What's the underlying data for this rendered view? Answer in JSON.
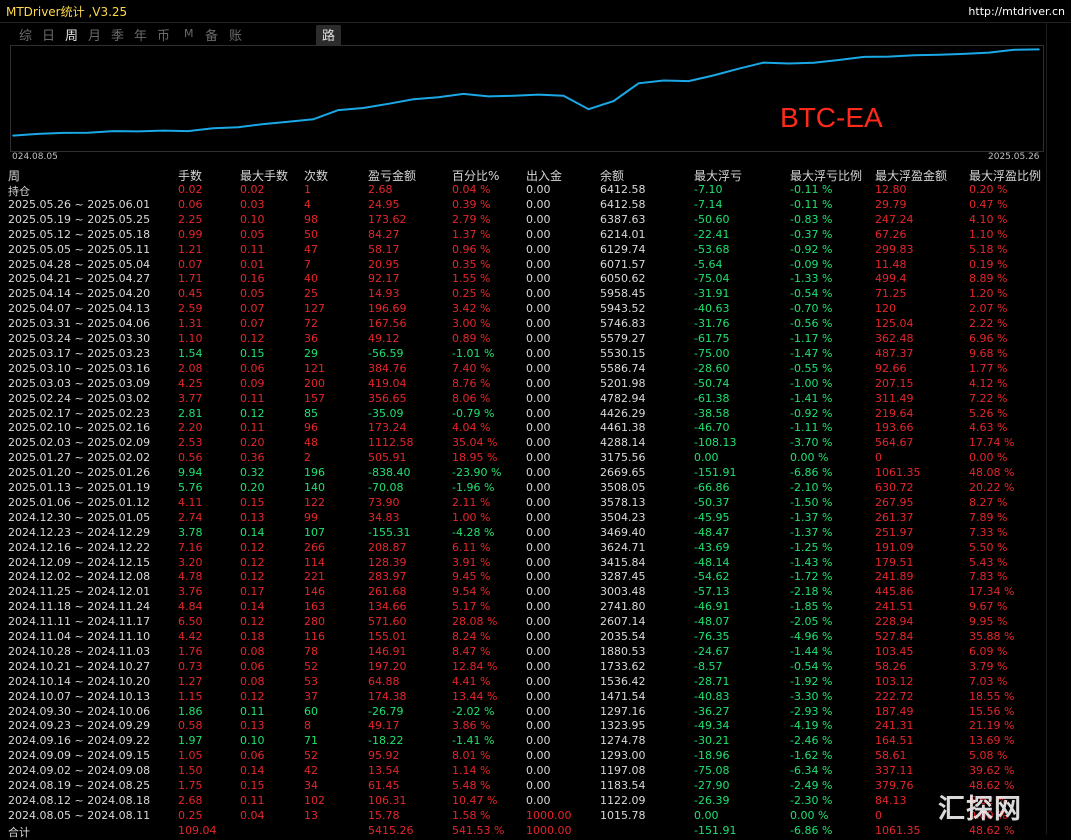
{
  "header": {
    "app_title": "MTDriver统计 ,V3.25",
    "site_url": "http://mtdriver.cn"
  },
  "tabs": [
    {
      "label": "综",
      "active": false
    },
    {
      "label": "日",
      "active": false
    },
    {
      "label": "周",
      "active": true
    },
    {
      "label": "月",
      "active": false
    },
    {
      "label": "季",
      "active": false
    },
    {
      "label": "年",
      "active": false
    },
    {
      "label": "币",
      "active": false
    },
    {
      "label": "M",
      "active": false
    },
    {
      "label": "备",
      "active": false
    },
    {
      "label": "账户",
      "active": false
    },
    {
      "label": "路径",
      "active": false
    }
  ],
  "chart": {
    "start_date": "024.08.05",
    "end_date": "2025.05.26",
    "watermark": "BTC-EA",
    "line_color": "#1aa8e6"
  },
  "chart_data": {
    "type": "line",
    "x": [
      "2024.08.05",
      "2024.08.12",
      "2024.08.19",
      "2024.09.02",
      "2024.09.09",
      "2024.09.16",
      "2024.09.23",
      "2024.09.30",
      "2024.10.07",
      "2024.10.14",
      "2024.10.21",
      "2024.10.28",
      "2024.11.04",
      "2024.11.11",
      "2024.11.18",
      "2024.11.25",
      "2024.12.02",
      "2024.12.09",
      "2024.12.16",
      "2024.12.23",
      "2024.12.30",
      "2025.01.06",
      "2025.01.13",
      "2025.01.20",
      "2025.01.27",
      "2025.02.03",
      "2025.02.10",
      "2025.02.17",
      "2025.02.24",
      "2025.03.03",
      "2025.03.10",
      "2025.03.17",
      "2025.03.24",
      "2025.03.31",
      "2025.04.07",
      "2025.04.14",
      "2025.04.21",
      "2025.04.28",
      "2025.05.05",
      "2025.05.12",
      "2025.05.19",
      "2025.05.26"
    ],
    "values": [
      1015.78,
      1122.09,
      1183.54,
      1197.08,
      1293.0,
      1274.78,
      1323.95,
      1297.16,
      1471.54,
      1536.42,
      1733.62,
      1880.53,
      2035.54,
      2607.14,
      2741.8,
      3003.48,
      3287.45,
      3415.84,
      3624.71,
      3469.4,
      3504.23,
      3578.13,
      3508.05,
      2669.65,
      3175.56,
      4288.14,
      4461.38,
      4426.29,
      4782.94,
      5201.98,
      5586.74,
      5530.15,
      5579.27,
      5746.83,
      5943.52,
      5958.45,
      6050.62,
      6071.57,
      6129.74,
      6214.01,
      6387.63,
      6412.58
    ],
    "xlabel": "",
    "ylabel": "",
    "start_label": "024.08.05",
    "end_label": "2025.05.26"
  },
  "table": {
    "headers": [
      "周",
      "手数",
      "最大手数",
      "次数",
      "盈亏金额",
      "百分比%",
      "出入金",
      "余额",
      "最大浮亏",
      "最大浮亏比例",
      "最大浮盈金额",
      "最大浮盈比例"
    ],
    "rows": [
      {
        "cells": [
          "持仓",
          "0.02",
          "0.02",
          "1",
          "2.68",
          "0.04 %",
          "0.00",
          "6412.58",
          "-7.10",
          "-0.11 %",
          "12.80",
          "0.20 %"
        ],
        "tone": "red"
      },
      {
        "cells": [
          "2025.05.26 ~ 2025.06.01",
          "0.06",
          "0.03",
          "4",
          "24.95",
          "0.39 %",
          "0.00",
          "6412.58",
          "-7.14",
          "-0.11 %",
          "29.79",
          "0.47 %"
        ],
        "tone": "red"
      },
      {
        "cells": [
          "2025.05.19 ~ 2025.05.25",
          "2.25",
          "0.10",
          "98",
          "173.62",
          "2.79 %",
          "0.00",
          "6387.63",
          "-50.60",
          "-0.83 %",
          "247.24",
          "4.10 %"
        ],
        "tone": "red"
      },
      {
        "cells": [
          "2025.05.12 ~ 2025.05.18",
          "0.99",
          "0.05",
          "50",
          "84.27",
          "1.37 %",
          "0.00",
          "6214.01",
          "-22.41",
          "-0.37 %",
          "67.26",
          "1.10 %"
        ],
        "tone": "red"
      },
      {
        "cells": [
          "2025.05.05 ~ 2025.05.11",
          "1.21",
          "0.11",
          "47",
          "58.17",
          "0.96 %",
          "0.00",
          "6129.74",
          "-53.68",
          "-0.92 %",
          "299.83",
          "5.18 %"
        ],
        "tone": "red"
      },
      {
        "cells": [
          "2025.04.28 ~ 2025.05.04",
          "0.07",
          "0.01",
          "7",
          "20.95",
          "0.35 %",
          "0.00",
          "6071.57",
          "-5.64",
          "-0.09 %",
          "11.48",
          "0.19 %"
        ],
        "tone": "red"
      },
      {
        "cells": [
          "2025.04.21 ~ 2025.04.27",
          "1.71",
          "0.16",
          "40",
          "92.17",
          "1.55 %",
          "0.00",
          "6050.62",
          "-75.04",
          "-1.33 %",
          "499.4",
          "8.89 %"
        ],
        "tone": "red"
      },
      {
        "cells": [
          "2025.04.14 ~ 2025.04.20",
          "0.45",
          "0.05",
          "25",
          "14.93",
          "0.25 %",
          "0.00",
          "5958.45",
          "-31.91",
          "-0.54 %",
          "71.25",
          "1.20 %"
        ],
        "tone": "red"
      },
      {
        "cells": [
          "2025.04.07 ~ 2025.04.13",
          "2.59",
          "0.07",
          "127",
          "196.69",
          "3.42 %",
          "0.00",
          "5943.52",
          "-40.63",
          "-0.70 %",
          "120",
          "2.07 %"
        ],
        "tone": "red"
      },
      {
        "cells": [
          "2025.03.31 ~ 2025.04.06",
          "1.31",
          "0.07",
          "72",
          "167.56",
          "3.00 %",
          "0.00",
          "5746.83",
          "-31.76",
          "-0.56 %",
          "125.04",
          "2.22 %"
        ],
        "tone": "red"
      },
      {
        "cells": [
          "2025.03.24 ~ 2025.03.30",
          "1.10",
          "0.12",
          "36",
          "49.12",
          "0.89 %",
          "0.00",
          "5579.27",
          "-61.75",
          "-1.17 %",
          "362.48",
          "6.96 %"
        ],
        "tone": "red"
      },
      {
        "cells": [
          "2025.03.17 ~ 2025.03.23",
          "1.54",
          "0.15",
          "29",
          "-56.59",
          "-1.01 %",
          "0.00",
          "5530.15",
          "-75.00",
          "-1.47 %",
          "487.37",
          "9.68 %"
        ],
        "tone": "green"
      },
      {
        "cells": [
          "2025.03.10 ~ 2025.03.16",
          "2.08",
          "0.06",
          "121",
          "384.76",
          "7.40 %",
          "0.00",
          "5586.74",
          "-28.60",
          "-0.55 %",
          "92.66",
          "1.77 %"
        ],
        "tone": "red"
      },
      {
        "cells": [
          "2025.03.03 ~ 2025.03.09",
          "4.25",
          "0.09",
          "200",
          "419.04",
          "8.76 %",
          "0.00",
          "5201.98",
          "-50.74",
          "-1.00 %",
          "207.15",
          "4.12 %"
        ],
        "tone": "red"
      },
      {
        "cells": [
          "2025.02.24 ~ 2025.03.02",
          "3.77",
          "0.11",
          "157",
          "356.65",
          "8.06 %",
          "0.00",
          "4782.94",
          "-61.38",
          "-1.41 %",
          "311.49",
          "7.22 %"
        ],
        "tone": "red"
      },
      {
        "cells": [
          "2025.02.17 ~ 2025.02.23",
          "2.81",
          "0.12",
          "85",
          "-35.09",
          "-0.79 %",
          "0.00",
          "4426.29",
          "-38.58",
          "-0.92 %",
          "219.64",
          "5.26 %"
        ],
        "tone": "green"
      },
      {
        "cells": [
          "2025.02.10 ~ 2025.02.16",
          "2.20",
          "0.11",
          "96",
          "173.24",
          "4.04 %",
          "0.00",
          "4461.38",
          "-46.70",
          "-1.11 %",
          "193.66",
          "4.63 %"
        ],
        "tone": "red"
      },
      {
        "cells": [
          "2025.02.03 ~ 2025.02.09",
          "2.53",
          "0.20",
          "48",
          "1112.58",
          "35.04 %",
          "0.00",
          "4288.14",
          "-108.13",
          "-3.70 %",
          "564.67",
          "17.74 %"
        ],
        "tone": "red"
      },
      {
        "cells": [
          "2025.01.27 ~ 2025.02.02",
          "0.56",
          "0.36",
          "2",
          "505.91",
          "18.95 %",
          "0.00",
          "3175.56",
          "0.00",
          "0.00 %",
          "0",
          "0.00 %"
        ],
        "tone": "red"
      },
      {
        "cells": [
          "2025.01.20 ~ 2025.01.26",
          "9.94",
          "0.32",
          "196",
          "-838.40",
          "-23.90 %",
          "0.00",
          "2669.65",
          "-151.91",
          "-6.86 %",
          "1061.35",
          "48.08 %"
        ],
        "tone": "green"
      },
      {
        "cells": [
          "2025.01.13 ~ 2025.01.19",
          "5.76",
          "0.20",
          "140",
          "-70.08",
          "-1.96 %",
          "0.00",
          "3508.05",
          "-66.86",
          "-2.10 %",
          "630.72",
          "20.22 %"
        ],
        "tone": "green"
      },
      {
        "cells": [
          "2025.01.06 ~ 2025.01.12",
          "4.11",
          "0.15",
          "122",
          "73.90",
          "2.11 %",
          "0.00",
          "3578.13",
          "-50.37",
          "-1.50 %",
          "267.95",
          "8.27 %"
        ],
        "tone": "red"
      },
      {
        "cells": [
          "2024.12.30 ~ 2025.01.05",
          "2.74",
          "0.13",
          "99",
          "34.83",
          "1.00 %",
          "0.00",
          "3504.23",
          "-45.95",
          "-1.37 %",
          "261.37",
          "7.89 %"
        ],
        "tone": "red"
      },
      {
        "cells": [
          "2024.12.23 ~ 2024.12.29",
          "3.78",
          "0.14",
          "107",
          "-155.31",
          "-4.28 %",
          "0.00",
          "3469.40",
          "-48.47",
          "-1.37 %",
          "251.97",
          "7.33 %"
        ],
        "tone": "green"
      },
      {
        "cells": [
          "2024.12.16 ~ 2024.12.22",
          "7.16",
          "0.12",
          "266",
          "208.87",
          "6.11 %",
          "0.00",
          "3624.71",
          "-43.69",
          "-1.25 %",
          "191.09",
          "5.50 %"
        ],
        "tone": "red"
      },
      {
        "cells": [
          "2024.12.09 ~ 2024.12.15",
          "3.20",
          "0.12",
          "114",
          "128.39",
          "3.91 %",
          "0.00",
          "3415.84",
          "-48.14",
          "-1.43 %",
          "179.51",
          "5.43 %"
        ],
        "tone": "red"
      },
      {
        "cells": [
          "2024.12.02 ~ 2024.12.08",
          "4.78",
          "0.12",
          "221",
          "283.97",
          "9.45 %",
          "0.00",
          "3287.45",
          "-54.62",
          "-1.72 %",
          "241.89",
          "7.83 %"
        ],
        "tone": "red"
      },
      {
        "cells": [
          "2024.11.25 ~ 2024.12.01",
          "3.76",
          "0.17",
          "146",
          "261.68",
          "9.54 %",
          "0.00",
          "3003.48",
          "-57.13",
          "-2.18 %",
          "445.86",
          "17.34 %"
        ],
        "tone": "red"
      },
      {
        "cells": [
          "2024.11.18 ~ 2024.11.24",
          "4.84",
          "0.14",
          "163",
          "134.66",
          "5.17 %",
          "0.00",
          "2741.80",
          "-46.91",
          "-1.85 %",
          "241.51",
          "9.67 %"
        ],
        "tone": "red"
      },
      {
        "cells": [
          "2024.11.11 ~ 2024.11.17",
          "6.50",
          "0.12",
          "280",
          "571.60",
          "28.08 %",
          "0.00",
          "2607.14",
          "-48.07",
          "-2.05 %",
          "228.94",
          "9.95 %"
        ],
        "tone": "red"
      },
      {
        "cells": [
          "2024.11.04 ~ 2024.11.10",
          "4.42",
          "0.18",
          "116",
          "155.01",
          "8.24 %",
          "0.00",
          "2035.54",
          "-76.35",
          "-4.96 %",
          "527.84",
          "35.88 %"
        ],
        "tone": "red"
      },
      {
        "cells": [
          "2024.10.28 ~ 2024.11.03",
          "1.76",
          "0.08",
          "78",
          "146.91",
          "8.47 %",
          "0.00",
          "1880.53",
          "-24.67",
          "-1.44 %",
          "103.45",
          "6.09 %"
        ],
        "tone": "red"
      },
      {
        "cells": [
          "2024.10.21 ~ 2024.10.27",
          "0.73",
          "0.06",
          "52",
          "197.20",
          "12.84 %",
          "0.00",
          "1733.62",
          "-8.57",
          "-0.54 %",
          "58.26",
          "3.79 %"
        ],
        "tone": "red"
      },
      {
        "cells": [
          "2024.10.14 ~ 2024.10.20",
          "1.27",
          "0.08",
          "53",
          "64.88",
          "4.41 %",
          "0.00",
          "1536.42",
          "-28.71",
          "-1.92 %",
          "103.12",
          "7.03 %"
        ],
        "tone": "red"
      },
      {
        "cells": [
          "2024.10.07 ~ 2024.10.13",
          "1.15",
          "0.12",
          "37",
          "174.38",
          "13.44 %",
          "0.00",
          "1471.54",
          "-40.83",
          "-3.30 %",
          "222.72",
          "18.55 %"
        ],
        "tone": "red"
      },
      {
        "cells": [
          "2024.09.30 ~ 2024.10.06",
          "1.86",
          "0.11",
          "60",
          "-26.79",
          "-2.02 %",
          "0.00",
          "1297.16",
          "-36.27",
          "-2.93 %",
          "187.49",
          "15.56 %"
        ],
        "tone": "green"
      },
      {
        "cells": [
          "2024.09.23 ~ 2024.09.29",
          "0.58",
          "0.13",
          "8",
          "49.17",
          "3.86 %",
          "0.00",
          "1323.95",
          "-49.34",
          "-4.19 %",
          "241.31",
          "21.19 %"
        ],
        "tone": "red"
      },
      {
        "cells": [
          "2024.09.16 ~ 2024.09.22",
          "1.97",
          "0.10",
          "71",
          "-18.22",
          "-1.41 %",
          "0.00",
          "1274.78",
          "-30.21",
          "-2.46 %",
          "164.51",
          "13.69 %"
        ],
        "tone": "green"
      },
      {
        "cells": [
          "2024.09.09 ~ 2024.09.15",
          "1.05",
          "0.06",
          "52",
          "95.92",
          "8.01 %",
          "0.00",
          "1293.00",
          "-18.96",
          "-1.62 %",
          "58.61",
          "5.08 %"
        ],
        "tone": "red"
      },
      {
        "cells": [
          "2024.09.02 ~ 2024.09.08",
          "1.50",
          "0.14",
          "42",
          "13.54",
          "1.14 %",
          "0.00",
          "1197.08",
          "-75.08",
          "-6.34 %",
          "337.11",
          "39.62 %"
        ],
        "tone": "red"
      },
      {
        "cells": [
          "2024.08.19 ~ 2024.08.25",
          "1.75",
          "0.15",
          "34",
          "61.45",
          "5.48 %",
          "0.00",
          "1183.54",
          "-27.90",
          "-2.49 %",
          "379.76",
          "48.62 %"
        ],
        "tone": "red"
      },
      {
        "cells": [
          "2024.08.12 ~ 2024.08.18",
          "2.68",
          "0.11",
          "102",
          "106.31",
          "10.47 %",
          "0.00",
          "1122.09",
          "-26.39",
          "-2.30 %",
          "84.13",
          "6.62 %"
        ],
        "tone": "red"
      },
      {
        "cells": [
          "2024.08.05 ~ 2024.08.11",
          "0.25",
          "0.04",
          "13",
          "15.78",
          "1.58 %",
          "1000.00",
          "1015.78",
          "0.00",
          "0.00 %",
          "0",
          "0.00 %"
        ],
        "tone": "red"
      },
      {
        "cells": [
          "合计",
          "109.04",
          "",
          "",
          "5415.26",
          "541.53 %",
          "1000.00",
          "",
          "-151.91",
          "-6.86 %",
          "1061.35",
          "48.62 %"
        ],
        "tone": "red"
      }
    ]
  },
  "logo_text": "汇探网",
  "colors": {
    "loss_green": "#20e070",
    "profit_red": "#e5262b",
    "accent_yellow": "#ffd84a"
  }
}
